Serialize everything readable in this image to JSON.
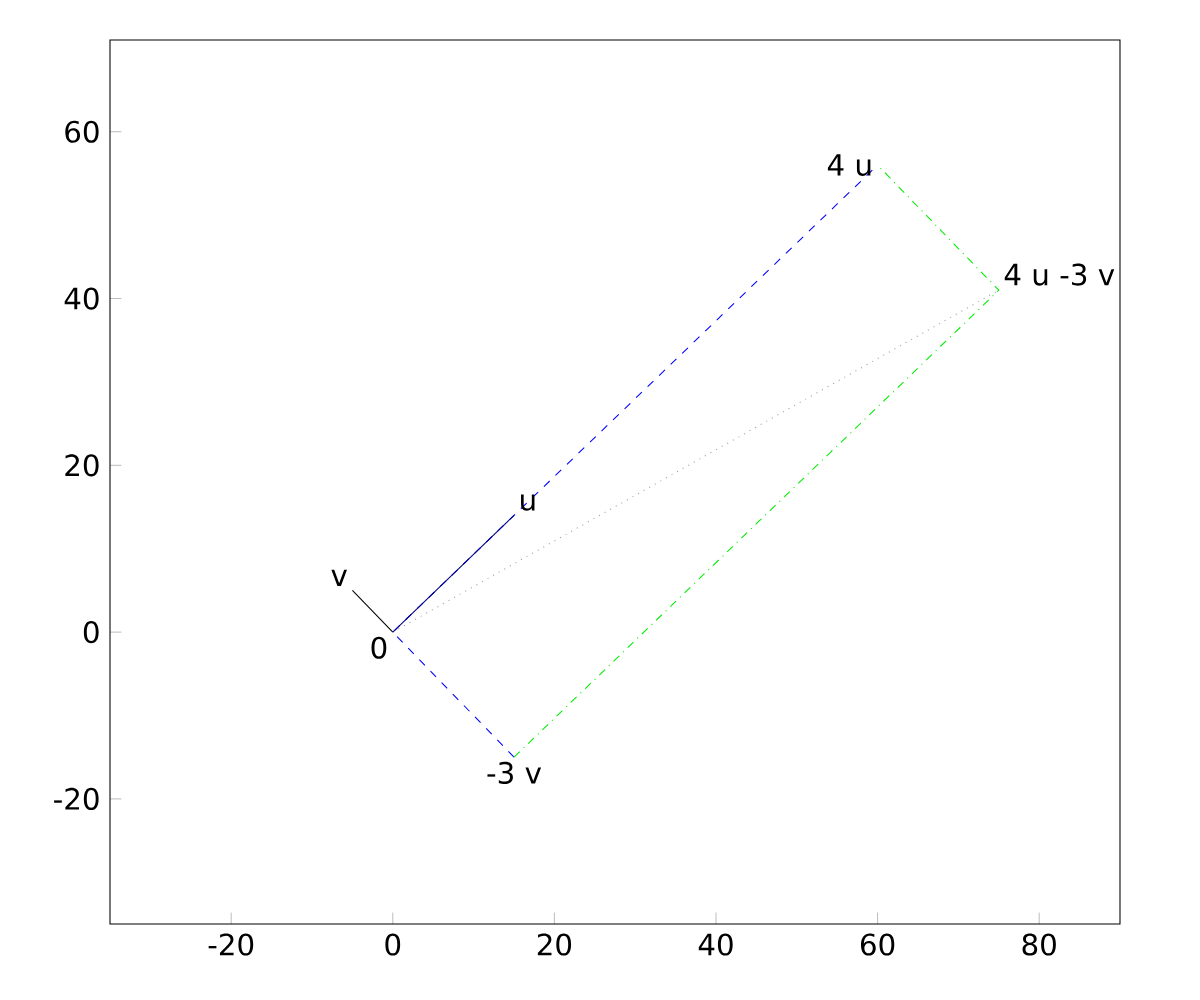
{
  "chart_data": {
    "type": "line",
    "series": [
      {
        "color": "#0000ff",
        "line_style": "dashed",
        "x": [
          15,
          0,
          60
        ],
        "values": [
          -15,
          0,
          56
        ]
      },
      {
        "color": "#00ee00",
        "line_style": "dashdot",
        "x": [
          15,
          75,
          60
        ],
        "values": [
          -15,
          41,
          56
        ]
      },
      {
        "color": "#a0a0a0",
        "line_style": "dotted",
        "x": [
          0,
          75
        ],
        "values": [
          0,
          41
        ]
      },
      {
        "color": "#000080",
        "line_style": "solid",
        "x": [
          0,
          15
        ],
        "values": [
          0,
          14
        ]
      },
      {
        "color": "#000000",
        "line_style": "solid",
        "x": [
          0,
          -5
        ],
        "values": [
          0,
          5
        ]
      }
    ],
    "annotations": [
      {
        "text": "u",
        "x": 15,
        "y": 14
      },
      {
        "text": "v",
        "x": -5,
        "y": 5
      },
      {
        "text": "0",
        "x": 0,
        "y": 0
      },
      {
        "text": "4 u",
        "x": 60,
        "y": 56
      },
      {
        "text": "-3 v",
        "x": 15,
        "y": -15
      },
      {
        "text": "4 u -3 v",
        "x": 75,
        "y": 41
      }
    ],
    "xlim": [
      -35,
      90
    ],
    "ylim": [
      -35,
      71
    ],
    "xticks": [
      -20,
      0,
      20,
      40,
      60,
      80
    ],
    "yticks": [
      -20,
      0,
      20,
      40,
      60
    ],
    "grid": false
  }
}
